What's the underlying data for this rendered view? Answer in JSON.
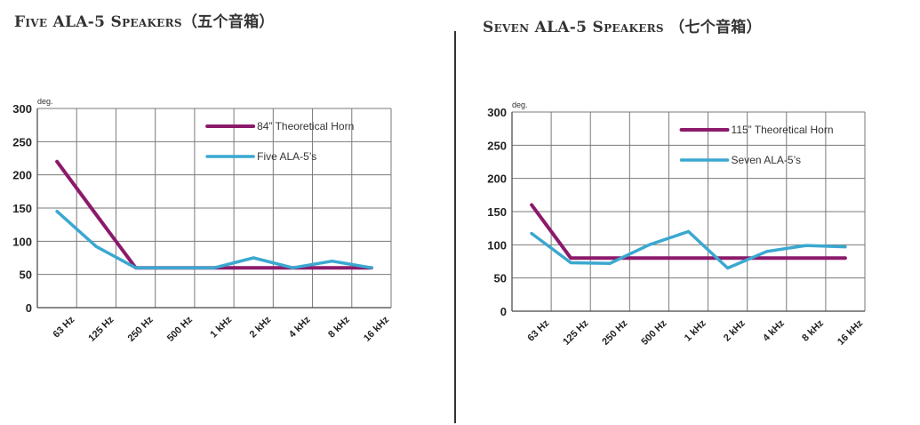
{
  "colors": {
    "horn": "#8b1a6b",
    "ala": "#3aa8d0",
    "grid": "#7a7a7a"
  },
  "titles": {
    "left": "Five ALA-5 Speakers（五个音箱）",
    "right": "Seven  ALA-5 Speakers （七个音箱）"
  },
  "chart_data": [
    {
      "type": "line",
      "ylabel": "deg.",
      "ylim": [
        0,
        300
      ],
      "yticks": [
        "0",
        "50",
        "100",
        "150",
        "200",
        "250",
        "300"
      ],
      "categories": [
        "63 Hz",
        "125 Hz",
        "250 Hz",
        "500 Hz",
        "1 kHz",
        "2 kHz",
        "4 kHz",
        "8 kHz",
        "16 kHz"
      ],
      "grid": true,
      "legend_position": "top-right",
      "series": [
        {
          "name": "84” Theoretical Horn",
          "color": "#8b1a6b",
          "values": [
            220,
            140,
            60,
            60,
            60,
            60,
            60,
            60,
            60
          ]
        },
        {
          "name": "Five ALA-5’s",
          "color": "#3aa8d0",
          "values": [
            145,
            92,
            60,
            60,
            60,
            75,
            60,
            70,
            60
          ]
        }
      ]
    },
    {
      "type": "line",
      "ylabel": "deg.",
      "ylim": [
        0,
        300
      ],
      "yticks": [
        "0",
        "50",
        "100",
        "150",
        "200",
        "250",
        "300"
      ],
      "categories": [
        "63 Hz",
        "125 Hz",
        "250 Hz",
        "500 Hz",
        "1 kHz",
        "2 kHz",
        "4 kHz",
        "8 kHz",
        "16 kHz"
      ],
      "grid": true,
      "legend_position": "top-right",
      "series": [
        {
          "name": "115” Theoretical Horn",
          "color": "#8b1a6b",
          "values": [
            160,
            80,
            80,
            80,
            80,
            80,
            80,
            80,
            80
          ]
        },
        {
          "name": "Seven ALA-5’s",
          "color": "#3aa8d0",
          "values": [
            117,
            73,
            72,
            100,
            120,
            65,
            90,
            99,
            97
          ]
        }
      ]
    }
  ]
}
